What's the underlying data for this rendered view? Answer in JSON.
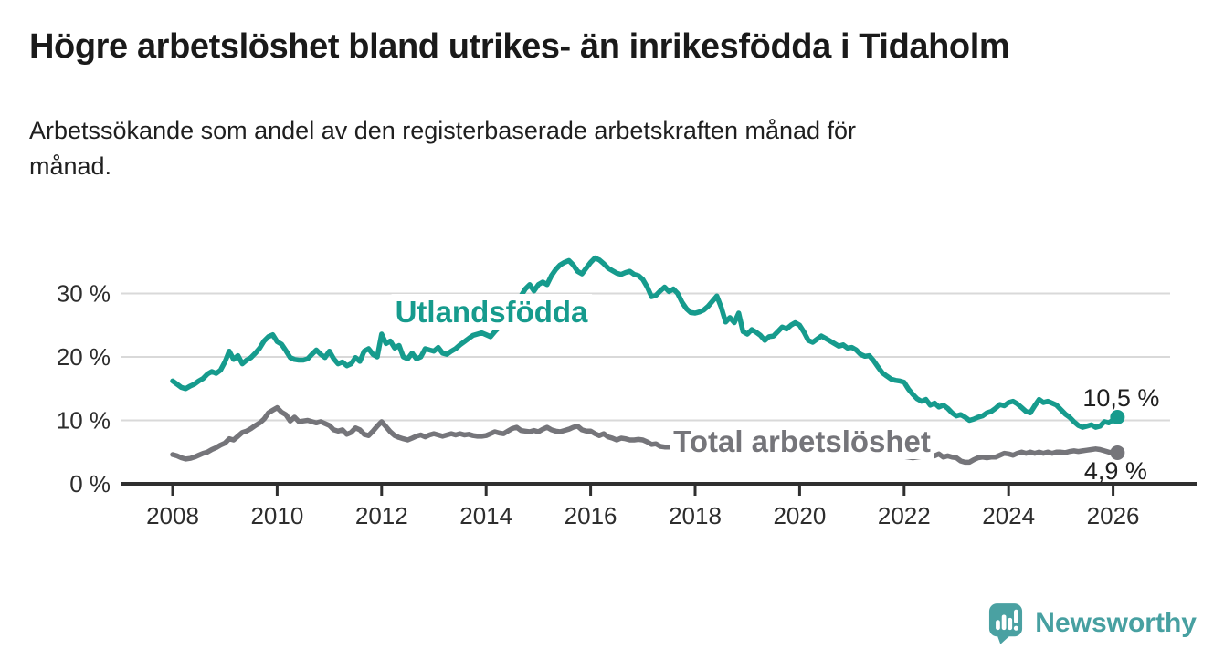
{
  "header": {
    "title": "Högre arbetslöshet bland utrikes- än inrikesfödda i Tidaholm",
    "subtitle_line1": "Arbetssökande som andel av den registerbaserade arbetskraften månad för",
    "subtitle_line2": "månad."
  },
  "chart_data": {
    "type": "line",
    "x_start_year": 2008,
    "points_per_year": 12,
    "x_ticks": [
      2008,
      2010,
      2012,
      2014,
      2016,
      2018,
      2020,
      2022,
      2024,
      2026
    ],
    "y_ticks": [
      0,
      10,
      20,
      30
    ],
    "y_tick_suffix": " %",
    "ylim": [
      0,
      37
    ],
    "grid": true,
    "colors": {
      "grid": "#d9d9d9",
      "axis": "#2f2f2f",
      "tick_label": "#2d2d2d",
      "value_label": "#1f1f1f",
      "background": "#ffffff"
    },
    "series": [
      {
        "name": "Total arbetslöshet",
        "color": "#75757a",
        "end_label": "4,9 %",
        "end_value": 4.9,
        "values": [
          4.6,
          4.4,
          4.1,
          3.9,
          4.0,
          4.2,
          4.5,
          4.8,
          5.0,
          5.4,
          5.7,
          6.1,
          6.4,
          7.1,
          6.9,
          7.5,
          8.1,
          8.3,
          8.7,
          9.2,
          9.6,
          10.2,
          11.2,
          11.6,
          12.0,
          11.3,
          10.9,
          9.9,
          10.5,
          9.8,
          9.9,
          10.0,
          9.8,
          9.6,
          9.8,
          9.5,
          9.2,
          8.5,
          8.3,
          8.5,
          7.8,
          8.1,
          8.8,
          8.5,
          7.8,
          7.6,
          8.3,
          9.1,
          9.8,
          9.0,
          8.2,
          7.6,
          7.3,
          7.1,
          6.9,
          7.2,
          7.5,
          7.7,
          7.4,
          7.7,
          7.9,
          7.7,
          7.5,
          7.7,
          7.9,
          7.7,
          7.9,
          7.7,
          7.8,
          7.6,
          7.5,
          7.5,
          7.6,
          7.9,
          8.2,
          8.0,
          7.9,
          8.3,
          8.7,
          8.9,
          8.4,
          8.3,
          8.2,
          8.4,
          8.2,
          8.6,
          8.9,
          8.5,
          8.3,
          8.2,
          8.4,
          8.6,
          8.9,
          9.1,
          8.5,
          8.3,
          8.3,
          7.9,
          7.6,
          7.9,
          7.4,
          7.2,
          6.9,
          7.2,
          7.1,
          6.9,
          6.9,
          7.0,
          6.9,
          6.6,
          6.2,
          6.3,
          5.9,
          5.8,
          5.8,
          5.7,
          5.7,
          5.6,
          5.6,
          5.5,
          5.5,
          5.5,
          5.4,
          5.4,
          5.4,
          5.3,
          5.3,
          5.3,
          5.2,
          5.2,
          5.2,
          5.1,
          5.1,
          5.1,
          5.1,
          5.0,
          5.0,
          5.0,
          5.0,
          5.0,
          5.0,
          4.9,
          4.9,
          4.9,
          4.9,
          5.0,
          5.1,
          5.2,
          5.3,
          5.3,
          5.2,
          5.2,
          5.1,
          5.0,
          5.0,
          4.9,
          4.9,
          4.8,
          4.8,
          4.7,
          4.7,
          4.6,
          4.6,
          4.5,
          4.5,
          4.4,
          4.4,
          4.3,
          4.3,
          4.2,
          4.1,
          4.2,
          4.3,
          4.5,
          4.7,
          4.4,
          4.7,
          4.2,
          4.4,
          4.2,
          4.1,
          3.6,
          3.4,
          3.4,
          3.8,
          4.1,
          4.2,
          4.1,
          4.2,
          4.2,
          4.5,
          4.8,
          4.7,
          4.5,
          4.8,
          5.0,
          4.8,
          5.0,
          4.8,
          5.0,
          4.8,
          5.0,
          4.8,
          5.0,
          5.0,
          4.9,
          5.1,
          5.2,
          5.1,
          5.2,
          5.3,
          5.4,
          5.5,
          5.4,
          5.2,
          5.0,
          4.9,
          4.9
        ]
      },
      {
        "name": "Utlandsfödda",
        "color": "#169b8d",
        "end_label": "10,5 %",
        "end_value": 10.5,
        "values": [
          16.2,
          15.7,
          15.2,
          15.0,
          15.4,
          15.7,
          16.2,
          16.6,
          17.3,
          17.7,
          17.4,
          17.9,
          19.2,
          20.9,
          19.6,
          20.2,
          18.9,
          19.5,
          19.9,
          20.6,
          21.4,
          22.5,
          23.2,
          23.5,
          22.4,
          22.0,
          21.0,
          19.9,
          19.6,
          19.5,
          19.5,
          19.7,
          20.4,
          21.1,
          20.4,
          19.9,
          20.9,
          19.7,
          18.9,
          19.2,
          18.6,
          18.9,
          19.9,
          19.3,
          20.9,
          21.3,
          20.4,
          20.0,
          23.6,
          22.1,
          22.5,
          21.4,
          21.8,
          20.0,
          19.7,
          20.6,
          19.7,
          20.0,
          21.3,
          21.1,
          20.9,
          21.5,
          20.6,
          20.4,
          20.9,
          21.3,
          21.9,
          22.4,
          22.9,
          23.4,
          23.6,
          23.8,
          23.5,
          23.2,
          24.0,
          24.7,
          25.4,
          26.1,
          26.8,
          28.0,
          29.6,
          30.7,
          31.4,
          30.4,
          31.4,
          31.8,
          31.4,
          32.8,
          33.8,
          34.5,
          34.9,
          35.2,
          34.5,
          33.5,
          33.1,
          34.0,
          34.9,
          35.6,
          35.3,
          34.7,
          34.0,
          33.6,
          33.2,
          33.0,
          33.3,
          33.5,
          33.0,
          32.8,
          32.2,
          31.0,
          29.5,
          29.7,
          30.4,
          31.0,
          30.3,
          30.7,
          30.0,
          28.6,
          27.6,
          27.0,
          26.9,
          27.1,
          27.4,
          28.0,
          28.8,
          29.6,
          27.8,
          25.5,
          26.2,
          25.4,
          26.9,
          24.0,
          23.6,
          24.3,
          23.9,
          23.4,
          22.6,
          23.2,
          23.3,
          24.0,
          24.7,
          24.4,
          25.0,
          25.4,
          25.0,
          23.9,
          22.6,
          22.3,
          22.8,
          23.3,
          22.9,
          22.5,
          22.1,
          21.7,
          21.9,
          21.4,
          21.5,
          21.1,
          20.4,
          20.1,
          20.2,
          19.4,
          18.4,
          17.5,
          17.0,
          16.5,
          16.3,
          16.2,
          16.0,
          14.9,
          14.1,
          13.4,
          13.0,
          13.3,
          12.4,
          12.7,
          12.1,
          12.4,
          11.9,
          11.2,
          10.7,
          10.9,
          10.5,
          10.0,
          10.2,
          10.5,
          10.7,
          11.2,
          11.4,
          11.9,
          12.5,
          12.3,
          12.8,
          13.0,
          12.6,
          12.0,
          11.4,
          11.2,
          12.3,
          13.3,
          12.8,
          13.0,
          12.7,
          12.4,
          11.7,
          11.0,
          10.5,
          9.8,
          9.2,
          8.9,
          9.1,
          9.3,
          8.9,
          9.1,
          9.8,
          9.6,
          10.1,
          10.5
        ]
      }
    ]
  },
  "branding": {
    "logo_text": "Newsworthy",
    "logo_color": "#47a0a1",
    "logo_icon": "newsworthy-chart-bubble-icon"
  }
}
